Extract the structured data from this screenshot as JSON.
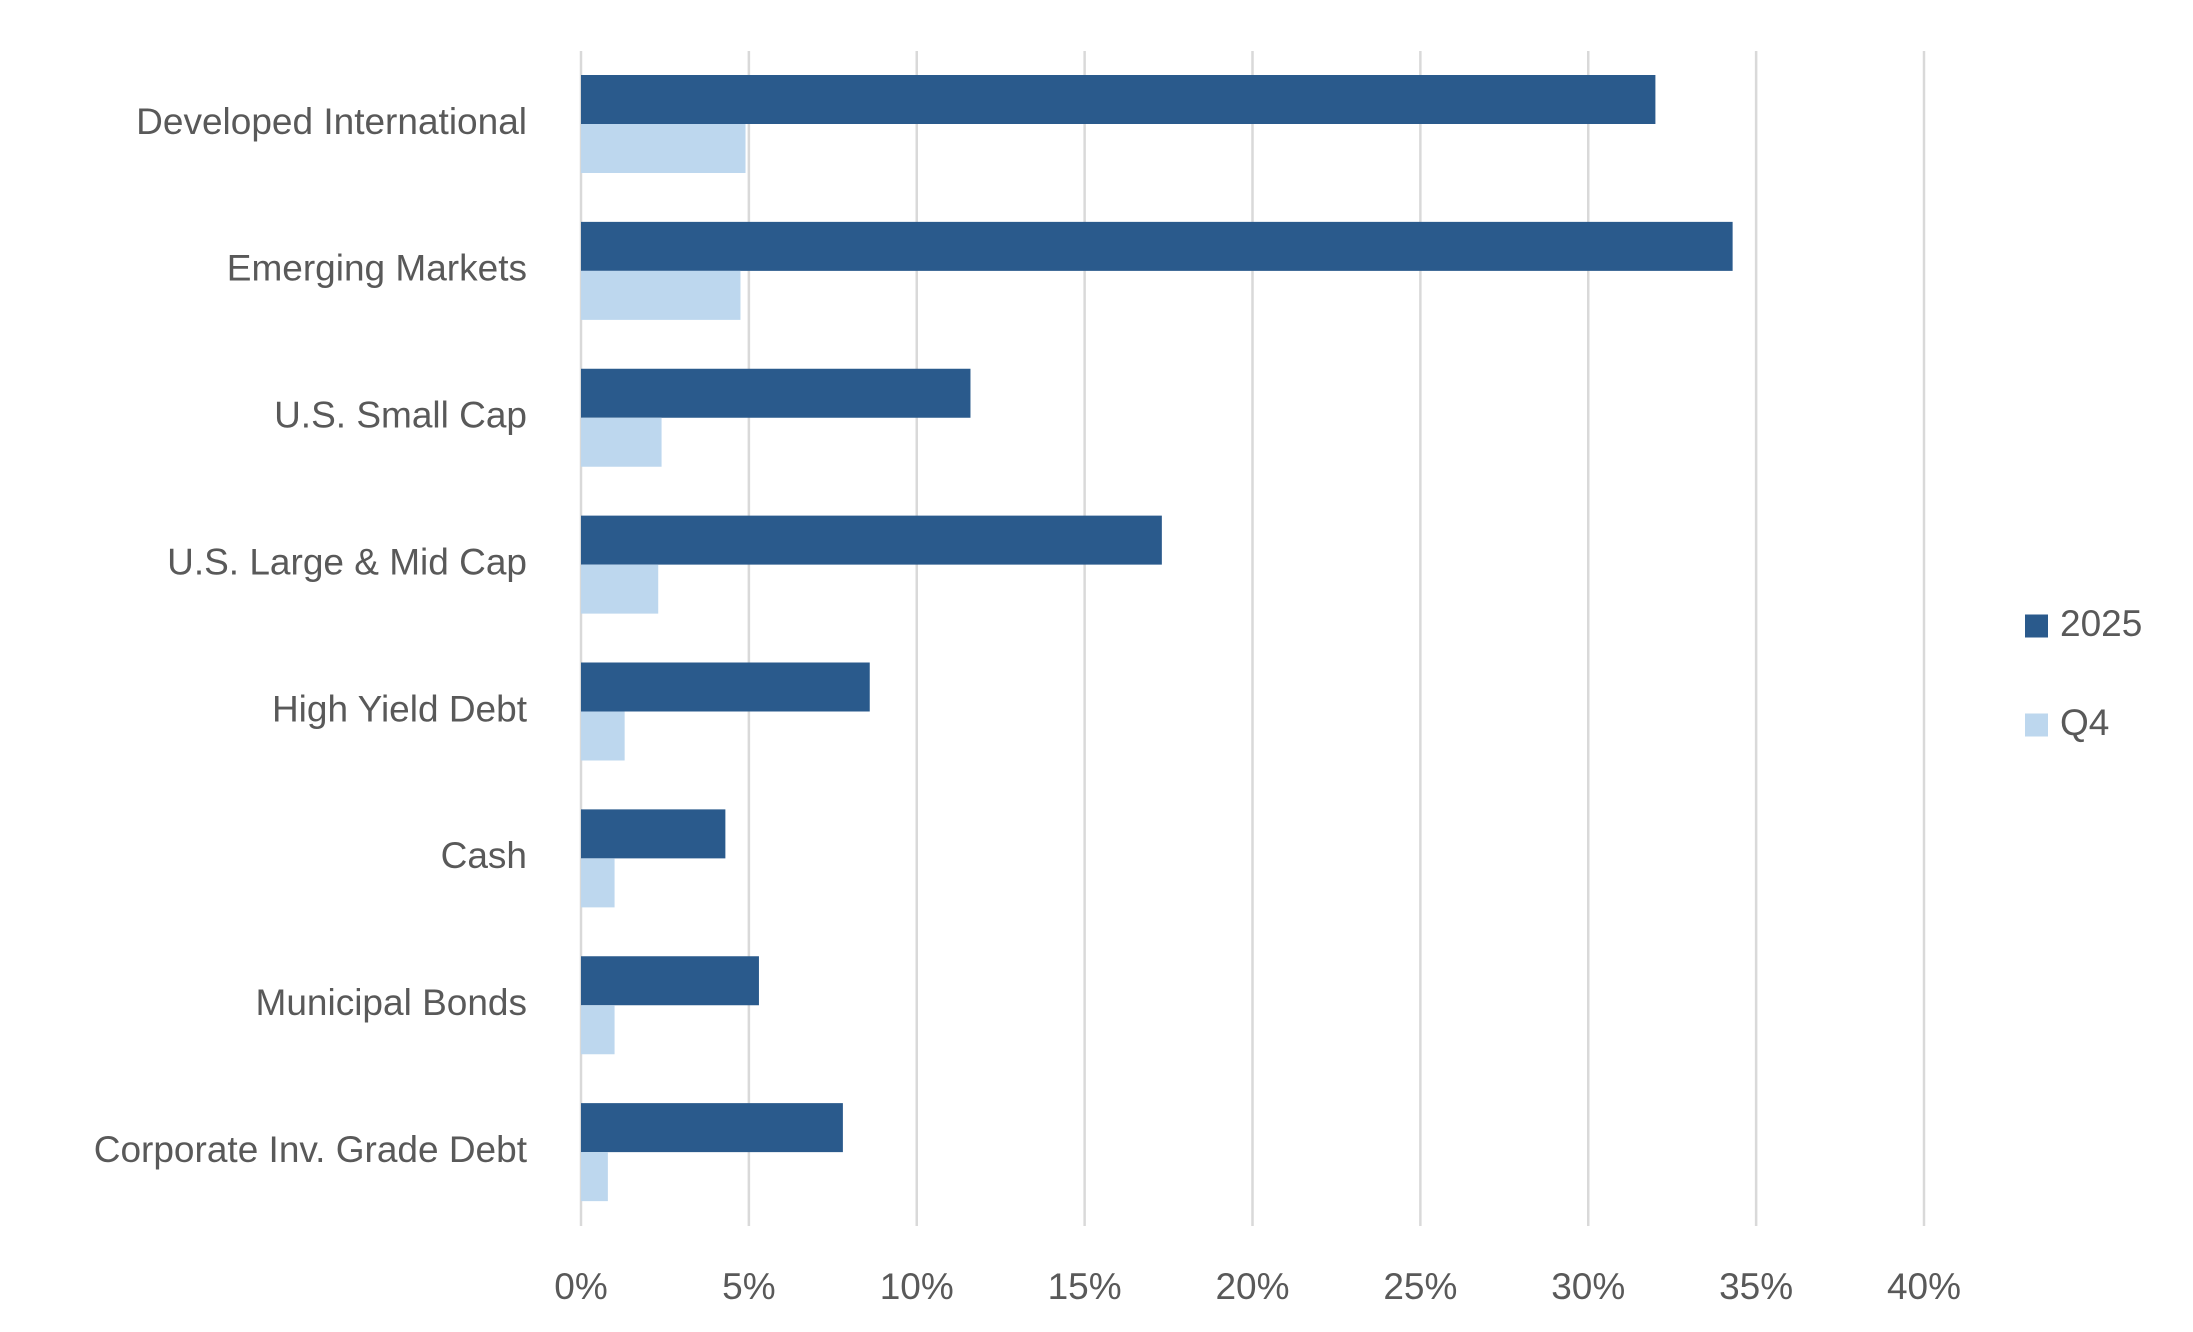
{
  "chart_data": {
    "type": "bar",
    "orientation": "horizontal",
    "categories": [
      "Developed International",
      "Emerging Markets",
      "U.S. Small Cap",
      "U.S. Large & Mid Cap",
      "High Yield Debt",
      "Cash",
      "Municipal Bonds",
      "Corporate Inv. Grade Debt"
    ],
    "series": [
      {
        "name": "2025",
        "color": "#2a5a8c",
        "values": [
          32.0,
          34.3,
          11.6,
          17.3,
          8.6,
          4.3,
          5.3,
          7.8
        ]
      },
      {
        "name": "Q4",
        "color": "#bdd7ee",
        "values": [
          4.9,
          4.75,
          2.4,
          2.3,
          1.3,
          1.0,
          1.0,
          0.8
        ]
      }
    ],
    "xlim": [
      0,
      40
    ],
    "xticks": [
      {
        "value": 0,
        "label": "0%"
      },
      {
        "value": 5,
        "label": "5%"
      },
      {
        "value": 10,
        "label": "10%"
      },
      {
        "value": 15,
        "label": "15%"
      },
      {
        "value": 20,
        "label": "20%"
      },
      {
        "value": 25,
        "label": "25%"
      },
      {
        "value": 30,
        "label": "30%"
      },
      {
        "value": 35,
        "label": "35%"
      },
      {
        "value": 40,
        "label": "40%"
      }
    ],
    "grid": true,
    "legend": "right"
  }
}
